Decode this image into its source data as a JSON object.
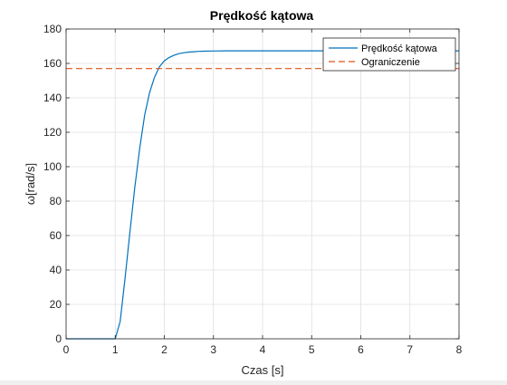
{
  "chart_data": {
    "type": "line",
    "title": "Prędkość kątowa",
    "xlabel": "Czas [s]",
    "ylabel": "ω[rad/s]",
    "xlim": [
      0,
      8
    ],
    "ylim": [
      0,
      180
    ],
    "xticks": [
      0,
      1,
      2,
      3,
      4,
      5,
      6,
      7,
      8
    ],
    "yticks": [
      0,
      20,
      40,
      60,
      80,
      100,
      120,
      140,
      160,
      180
    ],
    "grid": true,
    "legend_position": "top-right",
    "series": [
      {
        "name": "Prędkość kątowa",
        "color": "#0072BD",
        "style": "solid",
        "x": [
          0,
          1.0,
          1.1,
          1.2,
          1.3,
          1.4,
          1.5,
          1.6,
          1.7,
          1.8,
          1.9,
          2.0,
          2.1,
          2.2,
          2.3,
          2.4,
          2.5,
          2.6,
          2.7,
          2.8,
          3.0,
          3.25,
          3.5,
          4.0,
          5.0,
          6.0,
          8.0
        ],
        "y": [
          0,
          0,
          10,
          35,
          62,
          88,
          111,
          130,
          143,
          152,
          158,
          161.5,
          163.5,
          164.8,
          165.7,
          166.2,
          166.6,
          166.8,
          167.0,
          167.1,
          167.2,
          167.3,
          167.3,
          167.3,
          167.3,
          167.3,
          167.3
        ]
      },
      {
        "name": "Ograniczenie",
        "color": "#D95319",
        "style": "dashed",
        "x": [
          0,
          8
        ],
        "y": [
          157,
          157
        ]
      }
    ]
  }
}
